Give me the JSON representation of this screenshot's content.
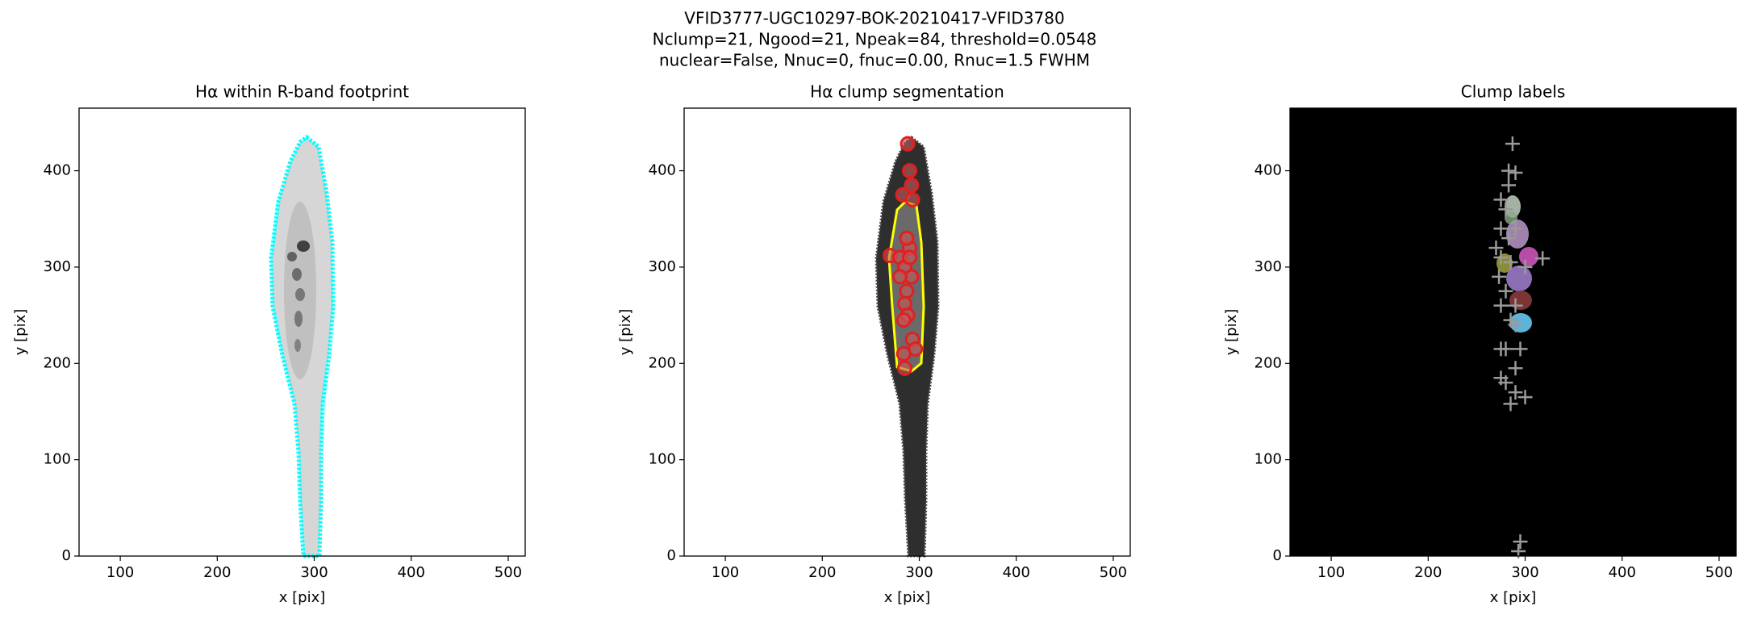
{
  "title_lines": [
    "VFID3777-UGC10297-BOK-20210417-VFID3780",
    "Nclump=21, Ngood=21, Npeak=84, threshold=0.0548",
    "nuclear=False, Nnuc=0, fnuc=0.00, Rnuc=1.5 FWHM"
  ],
  "chart_data": [
    {
      "type": "image",
      "title": "Hα within R-band footprint",
      "xlabel": "x [pix]",
      "ylabel": "y [pix]",
      "xlim": [
        57.5,
        517.5
      ],
      "ylim": [
        0,
        465
      ],
      "xticks": [
        100,
        200,
        300,
        400,
        500
      ],
      "yticks": [
        0,
        100,
        200,
        300,
        400
      ]
    },
    {
      "type": "scatter",
      "title": "Hα clump segmentation",
      "xlabel": "x [pix]",
      "ylabel": "y [pix]",
      "xlim": [
        57.5,
        517.5
      ],
      "ylim": [
        0,
        465
      ],
      "xticks": [
        100,
        200,
        300,
        400,
        500
      ],
      "yticks": [
        0,
        100,
        200,
        300,
        400
      ],
      "color": "#e02020",
      "x": [
        288,
        290,
        283,
        293,
        270,
        280,
        290,
        285,
        292,
        287,
        285,
        288,
        284,
        293,
        296,
        284,
        285,
        292,
        287,
        290,
        280
      ],
      "y": [
        428,
        400,
        375,
        370,
        312,
        310,
        320,
        300,
        290,
        275,
        262,
        250,
        245,
        225,
        215,
        210,
        195,
        385,
        330,
        310,
        290
      ]
    },
    {
      "type": "scatter",
      "title": "Clump labels",
      "xlabel": "x [pix]",
      "ylabel": "y [pix]",
      "xlim": [
        57.5,
        517.5
      ],
      "ylim": [
        0,
        465
      ],
      "xticks": [
        100,
        200,
        300,
        400,
        500
      ],
      "yticks": [
        0,
        100,
        200,
        300,
        400
      ],
      "color": "#9a9a9a",
      "x": [
        287,
        290,
        283,
        283,
        275,
        280,
        275,
        283,
        290,
        270,
        275,
        285,
        300,
        318,
        273,
        280,
        275,
        290,
        285,
        290,
        275,
        280,
        295,
        290,
        275,
        280,
        290,
        300,
        285,
        295,
        293
      ],
      "y": [
        428,
        398,
        400,
        385,
        370,
        360,
        340,
        330,
        340,
        320,
        310,
        305,
        300,
        309,
        290,
        275,
        260,
        260,
        245,
        240,
        215,
        215,
        215,
        195,
        185,
        180,
        170,
        165,
        158,
        15,
        5
      ]
    }
  ]
}
